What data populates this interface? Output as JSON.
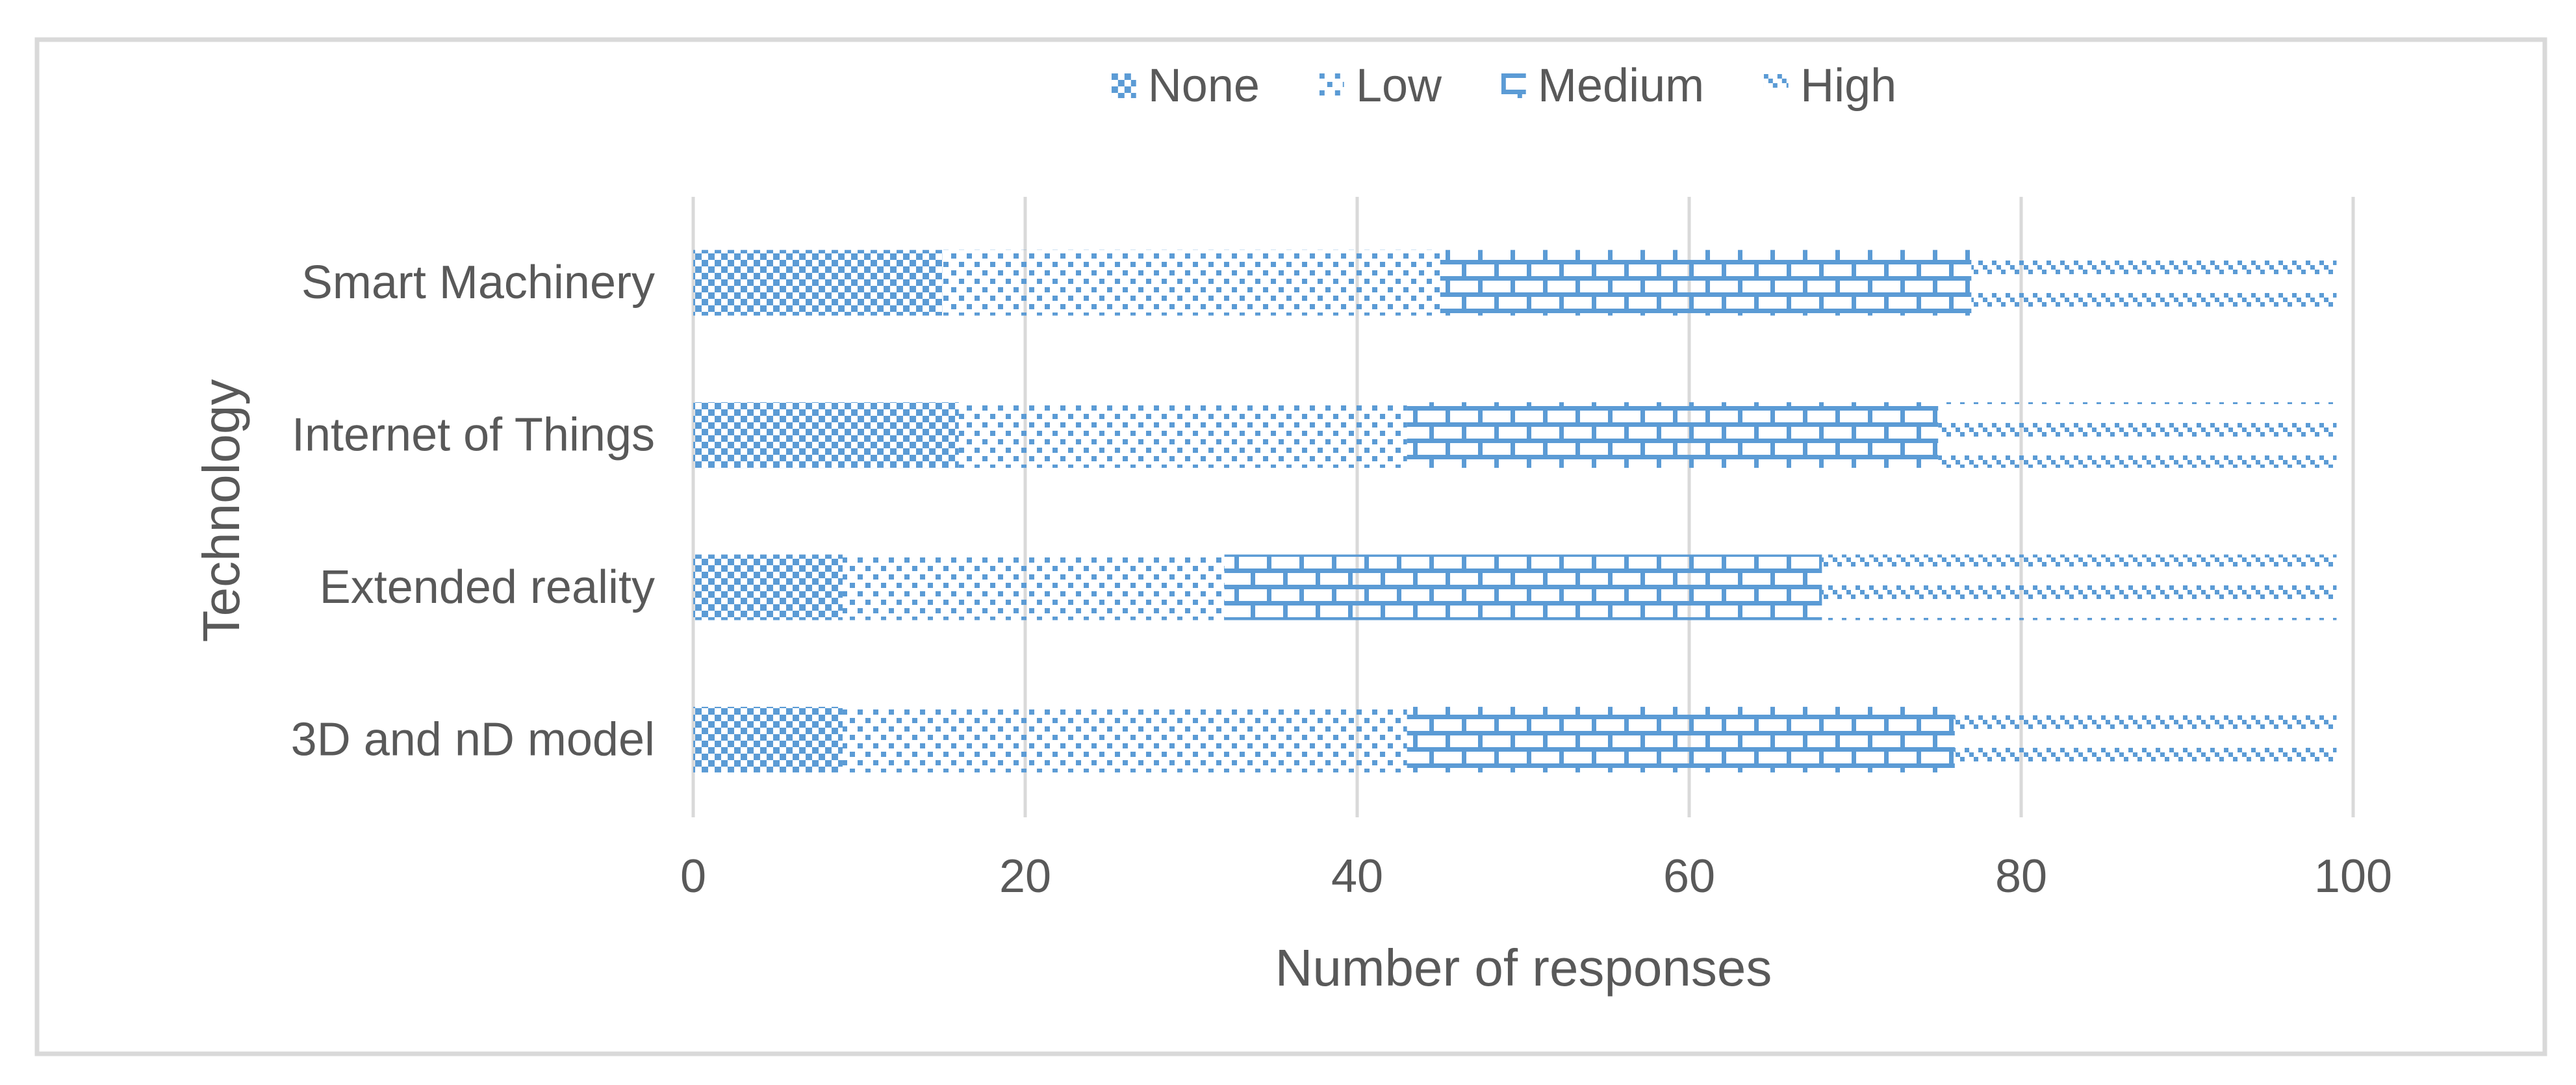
{
  "figure": {
    "background": "#FFFFFF",
    "border_color": "#D9D9D9",
    "gridline_color": "#D9D9D9",
    "text_color": "#595959",
    "accent_blue": "#5B9BD5"
  },
  "chart_data": {
    "type": "bar",
    "orientation": "horizontal",
    "stacked": true,
    "title": "",
    "xlabel": "Number of responses",
    "ylabel": "Technology",
    "xlim": [
      0,
      100
    ],
    "xticks": [
      0,
      20,
      40,
      60,
      80,
      100
    ],
    "grid": "vertical-only",
    "legend_position": "top-center",
    "categories": [
      "Smart Machinery",
      "Internet of Things",
      "Extended reality",
      "3D and nD model"
    ],
    "series": [
      {
        "name": "None",
        "pattern": "diagonal-checker",
        "color": "#5B9BD5",
        "values": [
          15,
          16,
          9,
          9
        ]
      },
      {
        "name": "Low",
        "pattern": "sparse-dots",
        "color": "#5B9BD5",
        "values": [
          30,
          27,
          23,
          34
        ]
      },
      {
        "name": "Medium",
        "pattern": "brick",
        "color": "#5B9BD5",
        "values": [
          32,
          32,
          36,
          33
        ]
      },
      {
        "name": "High",
        "pattern": "diagonal-dashes",
        "color": "#5B9BD5",
        "values": [
          22,
          24,
          31,
          23
        ]
      }
    ],
    "totals": [
      99,
      99,
      99,
      99
    ]
  }
}
